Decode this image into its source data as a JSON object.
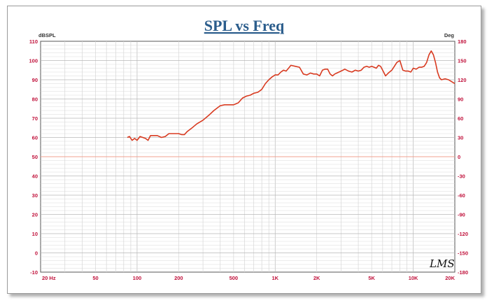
{
  "chart_data": {
    "type": "line",
    "title": "SPL vs Freq",
    "ylabel_left": "dBSPL",
    "ylabel_right": "Deg",
    "xscale": "log",
    "xlim": [
      20,
      20000
    ],
    "ylim_left": [
      -10,
      110
    ],
    "ylim_right": [
      -180,
      180
    ],
    "x_ticks": [
      {
        "value": 20,
        "label": "20 Hz"
      },
      {
        "value": 50,
        "label": "50"
      },
      {
        "value": 100,
        "label": "100"
      },
      {
        "value": 200,
        "label": "200"
      },
      {
        "value": 500,
        "label": "500"
      },
      {
        "value": 1000,
        "label": "1K"
      },
      {
        "value": 2000,
        "label": "2K"
      },
      {
        "value": 5000,
        "label": "5K"
      },
      {
        "value": 10000,
        "label": "10K"
      },
      {
        "value": 20000,
        "label": "20K"
      }
    ],
    "y_ticks_left": [
      "110",
      "100",
      "90",
      "80",
      "70",
      "60",
      "50",
      "40",
      "30",
      "20",
      "10",
      "0",
      "-10"
    ],
    "y_ticks_right": [
      "180",
      "150",
      "120",
      "90",
      "60",
      "30",
      "0",
      "-30",
      "-60",
      "-90",
      "-120",
      "-150",
      "-180"
    ],
    "grid": true,
    "annotation": "LMS",
    "colors": {
      "curve": "#d83a20",
      "reference_line": "#f0a090",
      "grid": "#d6d6d6",
      "tick_labels": "#c0103a",
      "title": "#2b5d8c"
    },
    "reference_line": {
      "y": 50
    },
    "series": [
      {
        "x": [
          85,
          88,
          92,
          96,
          100,
          105,
          110,
          115,
          120,
          125,
          130,
          135,
          140,
          150,
          160,
          170,
          180,
          190,
          200,
          210,
          220,
          230,
          250,
          270,
          300,
          330,
          360,
          400,
          430,
          460,
          500,
          540,
          580,
          620,
          660,
          700,
          750,
          800,
          850,
          900,
          950,
          1000,
          1050,
          1100,
          1150,
          1200,
          1250,
          1300,
          1400,
          1500,
          1600,
          1700,
          1800,
          1900,
          2000,
          2100,
          2200,
          2300,
          2400,
          2500,
          2600,
          2700,
          2800,
          3000,
          3200,
          3400,
          3600,
          3800,
          4000,
          4200,
          4400,
          4600,
          4800,
          5000,
          5200,
          5400,
          5600,
          5800,
          6000,
          6300,
          6600,
          7000,
          7300,
          7600,
          8000,
          8400,
          8800,
          9200,
          9600,
          10000,
          10500,
          11000,
          11500,
          12000,
          12500,
          13000,
          13500,
          14000,
          14500,
          15000,
          15500,
          16000,
          17000,
          18000,
          19000,
          20000
        ],
        "y": [
          60,
          60.5,
          58.5,
          59.5,
          58.5,
          60.5,
          60,
          59.5,
          58.5,
          61,
          61,
          61,
          61,
          60,
          60.5,
          62,
          62,
          62,
          62,
          61.5,
          61.5,
          63,
          65,
          67,
          69,
          71.5,
          74,
          76.5,
          77,
          77,
          77,
          78,
          80.5,
          81.5,
          82,
          83,
          83.5,
          85,
          88,
          90,
          91.5,
          92.5,
          92.5,
          94,
          95,
          94.5,
          96,
          97.5,
          97,
          96.5,
          93,
          92.5,
          93.5,
          93,
          93,
          92,
          95,
          95.5,
          95.5,
          93,
          92,
          93,
          93.5,
          94.5,
          95.5,
          94.5,
          94,
          95,
          94.5,
          95,
          96.5,
          97,
          96.5,
          97,
          96.5,
          96,
          97.5,
          97,
          95,
          92,
          93.5,
          95,
          97,
          99,
          100,
          95,
          94.5,
          94.5,
          94,
          96,
          95.5,
          96.5,
          96.5,
          97,
          99,
          103,
          105,
          103,
          99,
          94,
          91,
          90,
          90.5,
          90,
          89,
          88
        ]
      }
    ]
  }
}
